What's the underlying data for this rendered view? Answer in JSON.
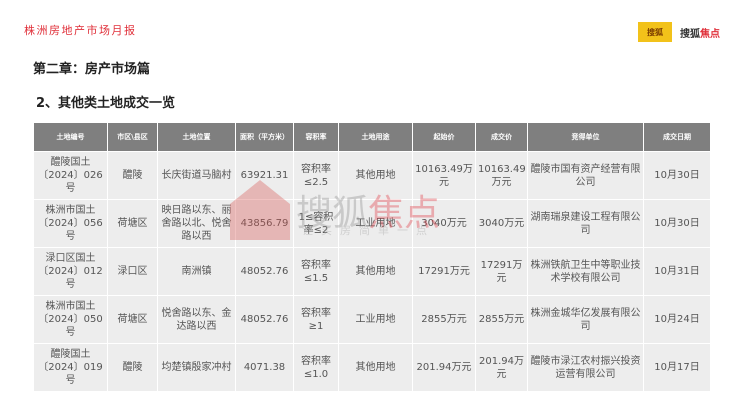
{
  "header": {
    "report_title": "株洲房地产市场月报",
    "logo1": "搜狐",
    "logo2_a": "搜狐",
    "logo2_b": "焦点"
  },
  "chapter": "第二章：房产市场篇",
  "section": "2、其他类土地成交一览",
  "watermark": {
    "a": "搜狐",
    "b": "焦点",
    "sub": "让买房简单一点"
  },
  "table": {
    "headers": [
      "土地编号",
      "市区\\县区",
      "土地位置",
      "面积（平方米）",
      "容积率",
      "土地用途",
      "起始价",
      "成交价",
      "竞得单位",
      "成交日期"
    ],
    "rows": [
      [
        "醴陵国土〔2024〕026号",
        "醴陵",
        "长庆街道马脑村",
        "63921.31",
        "容积率≤2.5",
        "其他用地",
        "10163.49万元",
        "10163.49万元",
        "醴陵市国有资产经营有限公司",
        "10月30日"
      ],
      [
        "株洲市国土〔2024〕056号",
        "荷塘区",
        "映日路以东、丽舍路以北、悦舍路以西",
        "43856.79",
        "1≤容积率≤2",
        "工业用地",
        "3040万元",
        "3040万元",
        "湖南瑞泉建设工程有限公司",
        "10月30日"
      ],
      [
        "渌口区国土〔2024〕012号",
        "渌口区",
        "南洲镇",
        "48052.76",
        "容积率≤1.5",
        "其他用地",
        "17291万元",
        "17291万元",
        "株洲铁航卫生中等职业技术学校有限公司",
        "10月31日"
      ],
      [
        "株洲市国土〔2024〕050号",
        "荷塘区",
        "悦舍路以东、金达路以西",
        "48052.76",
        "容积率≥1",
        "工业用地",
        "2855万元",
        "2855万元",
        "株洲金城华亿发展有限公司",
        "10月24日"
      ],
      [
        "醴陵国土〔2024〕019号",
        "醴陵",
        "均楚镇殷家冲村",
        "4071.38",
        "容积率≤1.0",
        "其他用地",
        "201.94万元",
        "201.94万元",
        "醴陵市渌江农村振兴投资运营有限公司",
        "10月17日"
      ]
    ]
  }
}
